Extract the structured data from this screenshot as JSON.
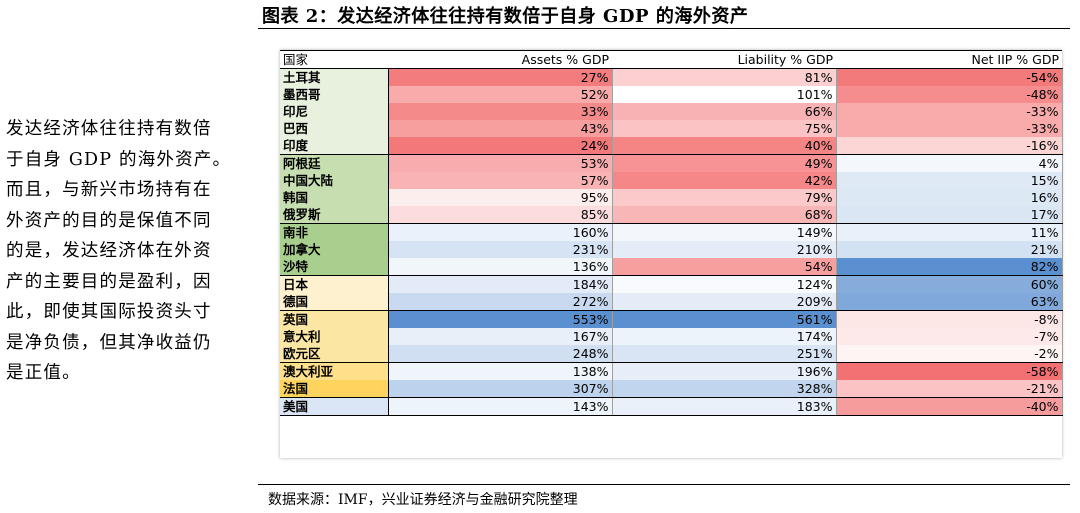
{
  "figure_title": "图表 2：发达经济体往往持有数倍于自身 GDP 的海外资产",
  "side_text_lines": [
    "发达经济体往往持有数倍",
    "于自身 GDP 的海外资产。",
    "而且，与新兴市场持有在",
    "外资产的目的是保值不同",
    "的是，发达经济体在外资",
    "产的主要目的是盈利，因",
    "此，即使其国际投资头寸",
    "是净负债，但其净收益仍",
    "是正值。"
  ],
  "table": {
    "headers": [
      "国家",
      "Assets % GDP",
      "Liability % GDP",
      "Net IIP % GDP"
    ],
    "group_colors": [
      "#e8f1de",
      "#c7deb1",
      "#a9cf8e",
      "#fdf1cf",
      "#fbe6a4",
      "#fee08a",
      "#fed45f",
      "#dae6f5"
    ],
    "rows": [
      {
        "country": "土耳其",
        "assets": "27%",
        "liability": "81%",
        "net": "-54%",
        "group": 0,
        "a_bg": "#f37d7e",
        "l_bg": "#fcd0d0",
        "n_bg": "#f37a7b"
      },
      {
        "country": "墨西哥",
        "assets": "52%",
        "liability": "101%",
        "net": "-48%",
        "group": 0,
        "a_bg": "#f9aaab",
        "l_bg": "#ffffff",
        "n_bg": "#f58c8d"
      },
      {
        "country": "印尼",
        "assets": "33%",
        "liability": "66%",
        "net": "-33%",
        "group": 0,
        "a_bg": "#f58a8b",
        "l_bg": "#f9b2b3",
        "n_bg": "#f9aaab"
      },
      {
        "country": "巴西",
        "assets": "43%",
        "liability": "75%",
        "net": "-33%",
        "group": 0,
        "a_bg": "#f79e9f",
        "l_bg": "#fbc3c4",
        "n_bg": "#f9aaab"
      },
      {
        "country": "印度",
        "assets": "24%",
        "liability": "40%",
        "net": "-16%",
        "group": 0,
        "a_bg": "#f37879",
        "l_bg": "#f58485",
        "n_bg": "#fcd5d5",
        "end": true
      },
      {
        "country": "阿根廷",
        "assets": "53%",
        "liability": "49%",
        "net": "4%",
        "group": 1,
        "a_bg": "#f9acad",
        "l_bg": "#f79394",
        "n_bg": "#f4f7fb"
      },
      {
        "country": "中国大陆",
        "assets": "57%",
        "liability": "42%",
        "net": "15%",
        "group": 1,
        "a_bg": "#fab3b4",
        "l_bg": "#f58788",
        "n_bg": "#dfe9f6"
      },
      {
        "country": "韩国",
        "assets": "95%",
        "liability": "79%",
        "net": "16%",
        "group": 1,
        "a_bg": "#fdeeee",
        "l_bg": "#fbc9c9",
        "n_bg": "#dde8f5"
      },
      {
        "country": "俄罗斯",
        "assets": "85%",
        "liability": "68%",
        "net": "17%",
        "group": 1,
        "a_bg": "#fcdcdc",
        "l_bg": "#f9b6b7",
        "n_bg": "#dbe6f5",
        "end": true
      },
      {
        "country": "南非",
        "assets": "160%",
        "liability": "149%",
        "net": "11%",
        "group": 2,
        "a_bg": "#eaf1fa",
        "l_bg": "#f3f7fc",
        "n_bg": "#e8f0f9"
      },
      {
        "country": "加拿大",
        "assets": "231%",
        "liability": "210%",
        "net": "21%",
        "group": 2,
        "a_bg": "#d6e3f4",
        "l_bg": "#e4ecf8",
        "n_bg": "#d3e2f3"
      },
      {
        "country": "沙特",
        "assets": "136%",
        "liability": "54%",
        "net": "82%",
        "group": 2,
        "a_bg": "#f1f6fb",
        "l_bg": "#f79e9f",
        "n_bg": "#5a8fd0",
        "end": true
      },
      {
        "country": "日本",
        "assets": "184%",
        "liability": "124%",
        "net": "60%",
        "group": 3,
        "a_bg": "#e3ebf8",
        "l_bg": "#f8fafd",
        "n_bg": "#86acdc"
      },
      {
        "country": "德国",
        "assets": "272%",
        "liability": "209%",
        "net": "63%",
        "group": 3,
        "a_bg": "#c9daf0",
        "l_bg": "#e4ecf8",
        "n_bg": "#80a8da",
        "end": true
      },
      {
        "country": "英国",
        "assets": "553%",
        "liability": "561%",
        "net": "-8%",
        "group": 4,
        "a_bg": "#5a8fd0",
        "l_bg": "#5a8fd0",
        "n_bg": "#fde6e6"
      },
      {
        "country": "意大利",
        "assets": "167%",
        "liability": "174%",
        "net": "-7%",
        "group": 4,
        "a_bg": "#e8eff9",
        "l_bg": "#edf3fa",
        "n_bg": "#fde9e9"
      },
      {
        "country": "欧元区",
        "assets": "248%",
        "liability": "251%",
        "net": "-2%",
        "group": 4,
        "a_bg": "#d1dff2",
        "l_bg": "#d9e5f5",
        "n_bg": "#fef4f4",
        "end": true
      },
      {
        "country": "澳大利亚",
        "assets": "138%",
        "liability": "196%",
        "net": "-58%",
        "group": 5,
        "a_bg": "#f0f5fb",
        "l_bg": "#e7eef9",
        "n_bg": "#f37172"
      },
      {
        "country": "法国",
        "assets": "307%",
        "liability": "328%",
        "net": "-21%",
        "group": 6,
        "a_bg": "#bdd2ed",
        "l_bg": "#c1d5ee",
        "n_bg": "#fbc3c4",
        "end": true
      },
      {
        "country": "美国",
        "assets": "143%",
        "liability": "183%",
        "net": "-40%",
        "group": 7,
        "a_bg": "#eef4fb",
        "l_bg": "#eaf0f9",
        "n_bg": "#f79c9d",
        "end": true
      }
    ]
  },
  "source": "数据来源：IMF，兴业证券经济与金融研究院整理"
}
